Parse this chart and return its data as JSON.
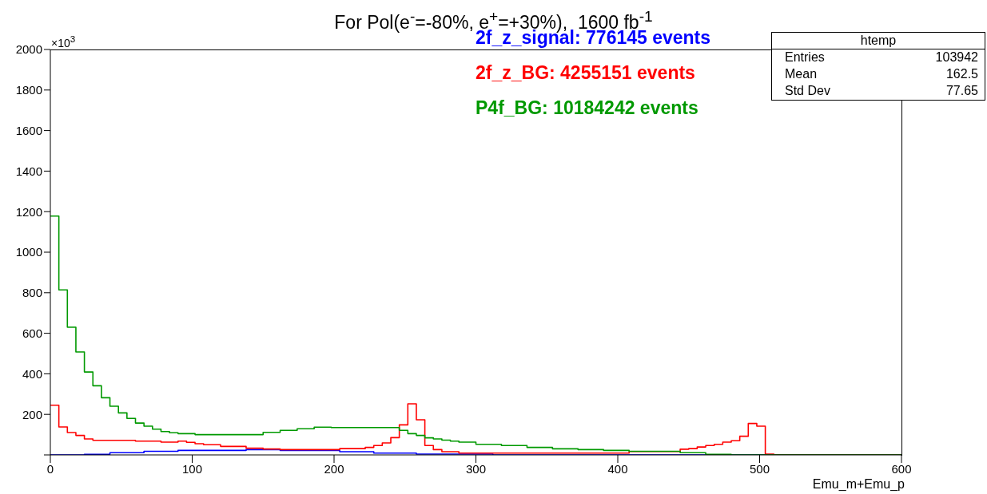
{
  "chart_data": {
    "type": "histogram",
    "title": "For Pol(e$^{-}$=-80%, e$^{+}$=+30%),  1600 fb$^{-1}$",
    "xlabel": "Emu_m+Emu_p",
    "annotations": [
      "×10$^{3}$",
      "htemp",
      "Entries",
      "103942",
      "Mean",
      "162.5",
      "Std Dev",
      "77.65"
    ],
    "bins": [
      0,
      6,
      12,
      18,
      24,
      30,
      36,
      42,
      48,
      54,
      60,
      66,
      72,
      78,
      84,
      90,
      96,
      102,
      108,
      114,
      120,
      126,
      132,
      138,
      144,
      150,
      156,
      162,
      168,
      174,
      180,
      186,
      192,
      198,
      204,
      210,
      216,
      222,
      228,
      234,
      240,
      246,
      252,
      258,
      264,
      270,
      276,
      282,
      288,
      294,
      300,
      306,
      312,
      318,
      324,
      330,
      336,
      342,
      348,
      354,
      360,
      366,
      372,
      378,
      384,
      390,
      396,
      402,
      408,
      414,
      420,
      426,
      432,
      438,
      444,
      450,
      456,
      462,
      468,
      474,
      480,
      486,
      492,
      498,
      504,
      510,
      516,
      522,
      528,
      534,
      540,
      546,
      552,
      558,
      564,
      570,
      576,
      582,
      588,
      594,
      600
    ],
    "series": [
      {
        "name": "2f_z_signal: 776145 events",
        "color": "#0000ff",
        "values": [
          0,
          0,
          0,
          0,
          3,
          3,
          3,
          11,
          11,
          11,
          11,
          18,
          18,
          18,
          18,
          22,
          22,
          22,
          22,
          22,
          22,
          22,
          22,
          26,
          26,
          26,
          26,
          22,
          22,
          22,
          22,
          22,
          22,
          22,
          16,
          16,
          16,
          16,
          9,
          9,
          9,
          9,
          9,
          4,
          4,
          4,
          4,
          4,
          4,
          4,
          4,
          4,
          0,
          0,
          0,
          0,
          0,
          0,
          0,
          0,
          0,
          0,
          0,
          0,
          0,
          0,
          0,
          0,
          0,
          0,
          0,
          0,
          0,
          0,
          0,
          0,
          0,
          0,
          0,
          0,
          0,
          0,
          0,
          0,
          0,
          0,
          0,
          0,
          0,
          0,
          0,
          0,
          0,
          0,
          0,
          0,
          0,
          0,
          0,
          0
        ]
      },
      {
        "name": "2f_z_BG: 4255151 events",
        "color": "#ff0000",
        "values": [
          245,
          138,
          110,
          96,
          79,
          72,
          72,
          72,
          72,
          72,
          68,
          68,
          68,
          63,
          63,
          68,
          62,
          55,
          50,
          50,
          42,
          42,
          42,
          33,
          33,
          29,
          29,
          26,
          26,
          26,
          26,
          26,
          26,
          26,
          31,
          31,
          31,
          37,
          46,
          59,
          85,
          148,
          252,
          173,
          46,
          26,
          16,
          16,
          9,
          9,
          9,
          9,
          9,
          9,
          9,
          9,
          9,
          9,
          9,
          9,
          9,
          9,
          9,
          9,
          9,
          9,
          9,
          9,
          17,
          17,
          17,
          17,
          17,
          17,
          28,
          31,
          39,
          46,
          52,
          63,
          70,
          92,
          155,
          142,
          4,
          0,
          0,
          0,
          0,
          0,
          0,
          0,
          0,
          0,
          0,
          0,
          0,
          0,
          0,
          0
        ]
      },
      {
        "name": "P4f_BG: 10184242 events",
        "color": "#009900",
        "values": [
          1178,
          814,
          630,
          508,
          409,
          341,
          282,
          240,
          207,
          180,
          157,
          142,
          127,
          115,
          109,
          105,
          105,
          100,
          100,
          100,
          100,
          100,
          100,
          100,
          100,
          111,
          111,
          121,
          121,
          129,
          129,
          137,
          137,
          135,
          135,
          135,
          135,
          135,
          135,
          135,
          135,
          121,
          105,
          96,
          84,
          79,
          73,
          68,
          63,
          63,
          52,
          52,
          52,
          46,
          46,
          46,
          37,
          37,
          37,
          30,
          30,
          30,
          26,
          26,
          26,
          22,
          22,
          22,
          18,
          18,
          18,
          18,
          18,
          18,
          11,
          11,
          11,
          3,
          3,
          3,
          0,
          0,
          0,
          0,
          0,
          0,
          0,
          0,
          0,
          0,
          0,
          0,
          0,
          0,
          0,
          0,
          0,
          0,
          0,
          0
        ]
      }
    ],
    "xlim": [
      0,
      600
    ],
    "xticks": [
      0,
      100,
      200,
      300,
      400,
      500,
      600
    ],
    "ylim": [
      0,
      2000
    ],
    "yticks": [
      {
        "value": 0,
        "label": null
      },
      200,
      400,
      600,
      800,
      1000,
      1200,
      1400,
      1600,
      1800,
      2000
    ],
    "legend": "top"
  }
}
